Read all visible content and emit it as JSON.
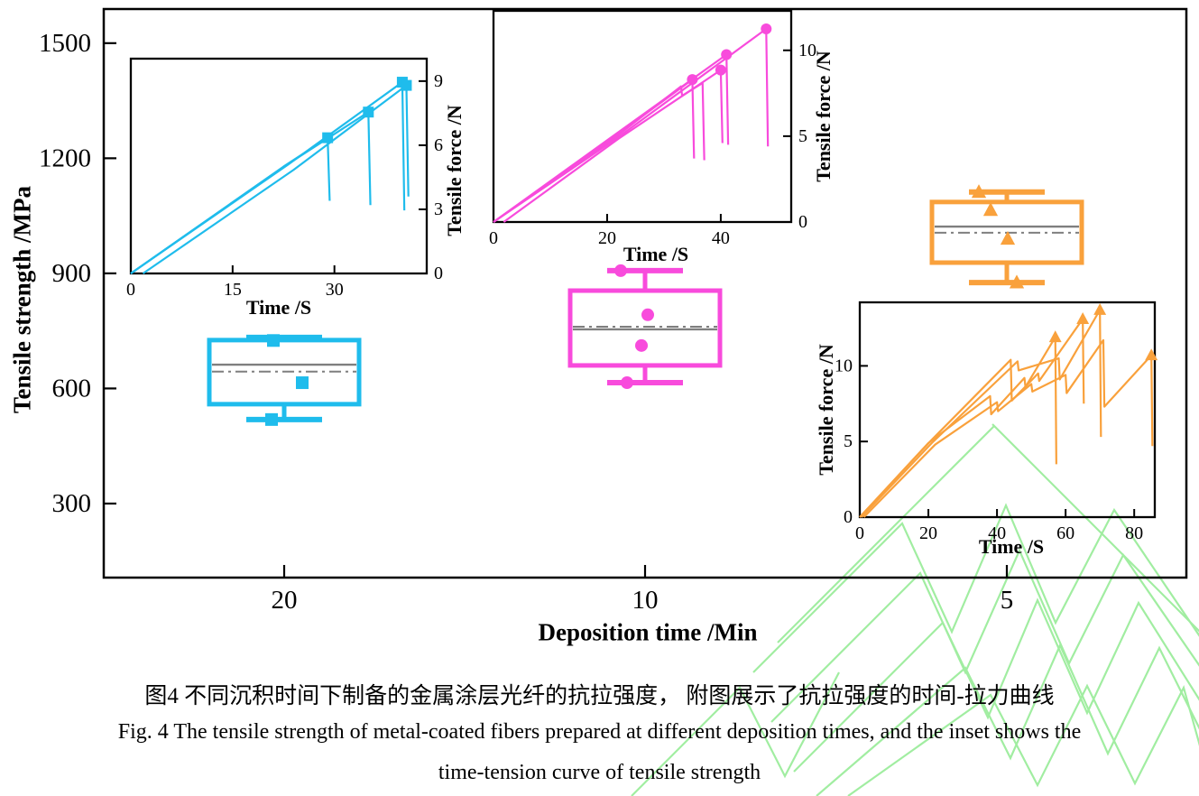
{
  "figure": {
    "caption_zh": "图4  不同沉积时间下制备的金属涂层光纤的抗拉强度，  附图展示了抗拉强度的时间-拉力曲线",
    "caption_en_1": "Fig. 4 The tensile strength of metal-coated fibers prepared at different deposition times, and the inset shows the",
    "caption_en_2": "time-tension curve of tensile strength"
  },
  "colors": {
    "cyan": "#1FBCEC",
    "magenta": "#F84BDC",
    "orange": "#F9A13C",
    "gray": "#7F7F7F",
    "axis": "#000000",
    "watermark": "#97EC97"
  },
  "chart_data": [
    {
      "type": "box",
      "id": "main",
      "xlabel": "Deposition time /Min",
      "ylabel": "Tensile strength /MPa",
      "ylim": [
        107,
        1589
      ],
      "yticks": [
        300,
        600,
        900,
        1200,
        1500
      ],
      "categories": [
        "20",
        "10",
        "5"
      ],
      "boxes": [
        {
          "category": "20",
          "color_key": "cyan",
          "marker": "square",
          "whisker_low": 519,
          "q1": 559,
          "mean": 644,
          "median": 662,
          "q3": 726,
          "whisker_high": 733,
          "points": [
            {
              "dx": -12,
              "value": 725
            },
            {
              "dx": 20,
              "value": 615
            },
            {
              "dx": -14,
              "value": 519
            }
          ]
        },
        {
          "category": "10",
          "color_key": "magenta",
          "marker": "circle",
          "whisker_low": 615,
          "q1": 660,
          "median": 754,
          "mean": 761,
          "q3": 855,
          "whisker_high": 907,
          "points": [
            {
              "dx": -27,
              "value": 907
            },
            {
              "dx": 3,
              "value": 792
            },
            {
              "dx": -4,
              "value": 712
            },
            {
              "dx": -20,
              "value": 615
            }
          ]
        },
        {
          "category": "5",
          "color_key": "orange",
          "marker": "triangle",
          "whisker_low": 876,
          "q1": 928,
          "mean": 1006,
          "median": 1022,
          "q3": 1086,
          "whisker_high": 1112,
          "points": [
            {
              "dx": -31,
              "value": 1112
            },
            {
              "dx": -18,
              "value": 1065
            },
            {
              "dx": 1,
              "value": 990
            },
            {
              "dx": 11,
              "value": 876
            }
          ]
        }
      ]
    },
    {
      "type": "line",
      "id": "inset-20min",
      "xlabel": "Time /S",
      "ylabel": "Tensile force /N",
      "ylabel_side": "right",
      "xlim": [
        0,
        43.6
      ],
      "ylim": [
        0,
        10.05
      ],
      "xticks": [
        0,
        15,
        30
      ],
      "yticks": [
        0,
        3,
        6,
        9
      ],
      "color_key": "cyan",
      "marker": "square",
      "series": [
        [
          [
            0,
            0
          ],
          [
            22.5,
            5.0
          ],
          [
            29,
            6.35
          ],
          [
            29.3,
            3.4
          ]
        ],
        [
          [
            0,
            0
          ],
          [
            22.8,
            5.05
          ],
          [
            35,
            7.55
          ],
          [
            35.3,
            3.2
          ]
        ],
        [
          [
            0,
            0
          ],
          [
            23.2,
            5.1
          ],
          [
            40,
            8.95
          ],
          [
            40.3,
            2.95
          ]
        ],
        [
          [
            1.8,
            0
          ],
          [
            24,
            4.85
          ],
          [
            40.6,
            8.8
          ],
          [
            40.9,
            3.6
          ]
        ]
      ],
      "markers": [
        [
          29,
          6.35
        ],
        [
          35,
          7.55
        ],
        [
          40,
          8.95
        ],
        [
          40.6,
          8.8
        ]
      ]
    },
    {
      "type": "line",
      "id": "inset-10min",
      "xlabel": "Time /S",
      "ylabel": "Tensile force /N",
      "ylabel_side": "right",
      "xlim": [
        0,
        52.4
      ],
      "ylim": [
        0,
        12.3
      ],
      "xticks": [
        0,
        20,
        40
      ],
      "yticks": [
        0,
        5,
        10
      ],
      "color_key": "magenta",
      "marker": "circle",
      "series": [
        [
          [
            0,
            0
          ],
          [
            21,
            4.9
          ],
          [
            35,
            8.3
          ],
          [
            35.3,
            3.7
          ]
        ],
        [
          [
            0,
            0
          ],
          [
            21.5,
            4.95
          ],
          [
            33,
            7.9
          ],
          [
            33.2,
            7.35
          ],
          [
            36.8,
            8.1
          ],
          [
            37.1,
            3.6
          ]
        ],
        [
          [
            1.8,
            0
          ],
          [
            22,
            4.85
          ],
          [
            40,
            8.85
          ],
          [
            40.3,
            4.6
          ]
        ],
        [
          [
            0,
            0
          ],
          [
            21,
            5.0
          ],
          [
            41,
            9.75
          ],
          [
            41.3,
            4.5
          ]
        ],
        [
          [
            0,
            0
          ],
          [
            22,
            4.95
          ],
          [
            48,
            11.25
          ],
          [
            48.3,
            4.4
          ]
        ]
      ],
      "markers": [
        [
          35,
          8.3
        ],
        [
          40,
          8.85
        ],
        [
          41,
          9.75
        ],
        [
          48,
          11.25
        ]
      ]
    },
    {
      "type": "line",
      "id": "inset-5min",
      "xlabel": "Time /S",
      "ylabel": "Tensile force /N",
      "ylabel_side": "left",
      "xlim": [
        0,
        86
      ],
      "ylim": [
        0,
        14.2
      ],
      "xticks": [
        0,
        20,
        40,
        60,
        80
      ],
      "yticks": [
        0,
        5,
        10
      ],
      "color_key": "orange",
      "marker": "triangle",
      "series": [
        [
          [
            0,
            0
          ],
          [
            20,
            4.9
          ],
          [
            38,
            8.0
          ],
          [
            38.3,
            6.8
          ],
          [
            48,
            9.2
          ],
          [
            48.3,
            8.6
          ],
          [
            57,
            11.9
          ],
          [
            57.3,
            3.5
          ]
        ],
        [
          [
            0,
            0
          ],
          [
            20.5,
            5.0
          ],
          [
            44,
            10.4
          ],
          [
            44.3,
            7.7
          ],
          [
            52,
            9.5
          ],
          [
            52.3,
            9.0
          ],
          [
            65,
            13.1
          ],
          [
            65.3,
            7.5
          ]
        ],
        [
          [
            0.5,
            0
          ],
          [
            21,
            4.9
          ],
          [
            46,
            10.3
          ],
          [
            46.3,
            9.7
          ],
          [
            58,
            10.5
          ],
          [
            58.3,
            9.1
          ],
          [
            70,
            13.7
          ],
          [
            70.3,
            5.3
          ]
        ],
        [
          [
            1.2,
            0
          ],
          [
            22,
            4.8
          ],
          [
            40,
            7.6
          ],
          [
            40.3,
            7.0
          ],
          [
            50,
            8.8
          ],
          [
            50.3,
            8.3
          ],
          [
            60,
            9.4
          ],
          [
            60.3,
            8.2
          ],
          [
            71,
            11.7
          ],
          [
            71.3,
            7.3
          ],
          [
            85,
            10.7
          ],
          [
            85.3,
            4.7
          ]
        ]
      ],
      "markers": [
        [
          57,
          11.9
        ],
        [
          65,
          13.1
        ],
        [
          70,
          13.7
        ],
        [
          85,
          10.7
        ]
      ]
    }
  ]
}
